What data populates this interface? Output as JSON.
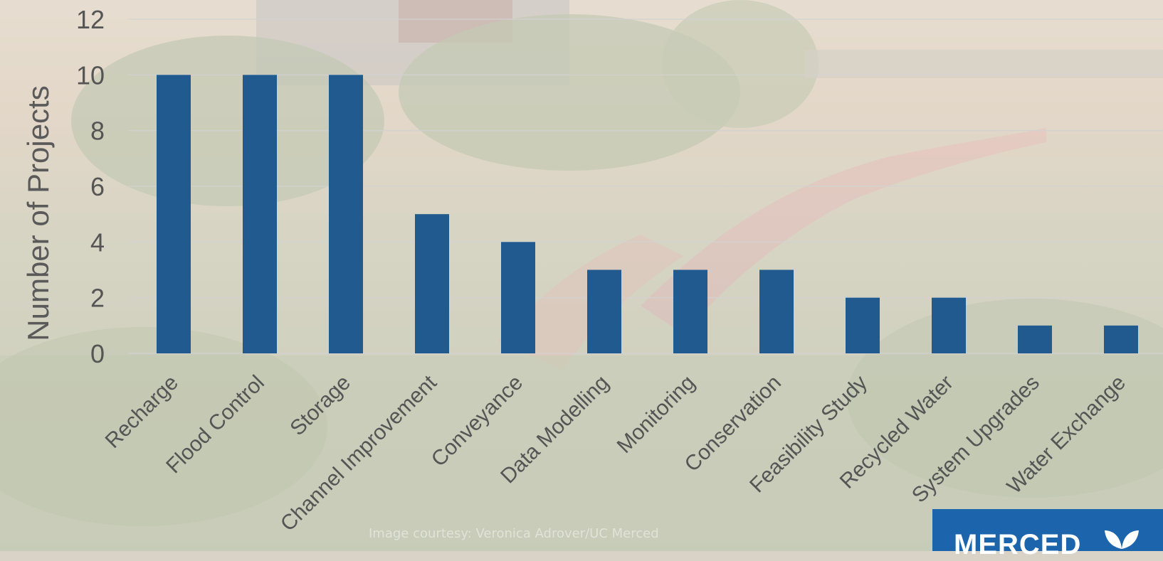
{
  "chart_data": {
    "type": "bar",
    "categories": [
      "Recharge",
      "Flood Control",
      "Storage",
      "Channel Improvement",
      "Conveyance",
      "Data Modelling",
      "Monitoring",
      "Conservation",
      "Feasibility Study",
      "Recycled Water",
      "System Upgrades",
      "Water Exchange"
    ],
    "values": [
      10,
      10,
      10,
      5,
      4,
      3,
      3,
      3,
      2,
      2,
      1,
      1
    ],
    "ylabel": "Number of Projects",
    "ylim": [
      0,
      12
    ],
    "yticks": [
      0,
      2,
      4,
      6,
      8,
      10,
      12
    ],
    "grid": true,
    "bar_color": "#215a8f"
  },
  "credit": "Image courtesy: Veronica Adrover/UC Merced",
  "logo": {
    "text": "MERCED",
    "color": "#1c65ad",
    "icon": "leaf-icon"
  }
}
